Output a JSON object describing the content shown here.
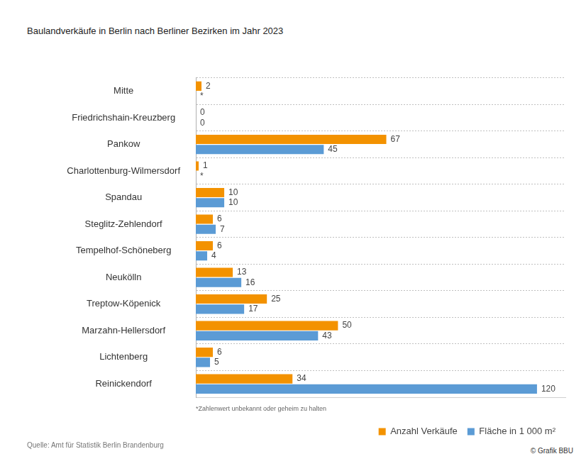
{
  "chart_data": {
    "type": "bar",
    "orientation": "horizontal",
    "title": "Baulandverkäufe in Berlin nach Berliner Bezirken im Jahr 2023",
    "categories": [
      "Mitte",
      "Friedrichshain-Kreuzberg",
      "Pankow",
      "Charlottenburg-Wilmersdorf",
      "Spandau",
      "Steglitz-Zehlendorf",
      "Tempelhof-Schöneberg",
      "Neukölln",
      "Treptow-Köpenick",
      "Marzahn-Hellersdorf",
      "Lichtenberg",
      "Reinickendorf"
    ],
    "series": [
      {
        "name": "Anzahl Verkäufe",
        "color": "#f39200",
        "values": [
          2,
          0,
          67,
          1,
          10,
          6,
          6,
          13,
          25,
          50,
          6,
          34
        ]
      },
      {
        "name": "Fläche in 1 000 m²",
        "color": "#5b9bd5",
        "values": [
          null,
          0,
          45,
          null,
          10,
          7,
          4,
          16,
          17,
          43,
          5,
          120
        ],
        "value_labels": [
          "*",
          "0",
          "45",
          "*",
          "10",
          "7",
          "4",
          "16",
          "17",
          "43",
          "5",
          "120"
        ]
      }
    ],
    "xlim": [
      0,
      130
    ],
    "data_labels": true,
    "tick_labels": "y",
    "grid": true,
    "legend": "bottom right",
    "footnote": "*Zahlenwert unbekannt oder geheim zu halten",
    "source": "Quelle: Amt für Statistik Berlin Brandenburg",
    "credit": "© Grafik BBU"
  }
}
